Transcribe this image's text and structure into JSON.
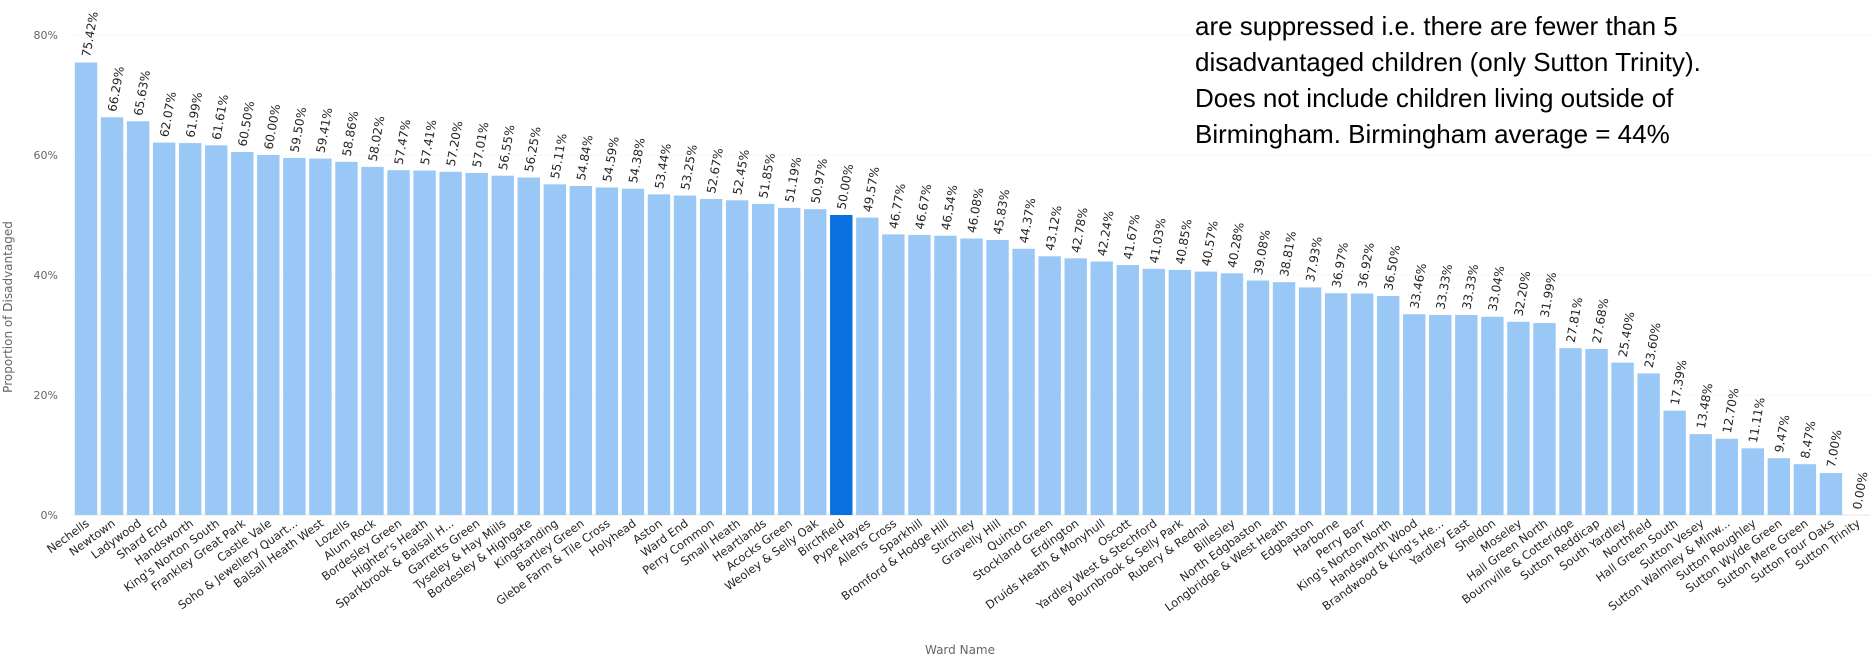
{
  "note_lines": [
    "are suppressed i.e. there are fewer than 5",
    "disadvantaged children (only Sutton Trinity).",
    "Does not include children living outside of",
    "Birmingham. Birmingham average = 44%"
  ],
  "colors": {
    "bar": "#99c8f6",
    "highlight": "#0a6fe0",
    "text": "#252423",
    "axis_text": "#666666",
    "grid": "#e4e4e4"
  },
  "chart_data": {
    "type": "bar",
    "xlabel": "Ward Name",
    "ylabel": "Proportion of Disadvantaged",
    "ylim": [
      0,
      80
    ],
    "yticks": [
      0,
      20,
      40,
      60,
      80
    ],
    "ytick_labels": [
      "0%",
      "20%",
      "40%",
      "60%",
      "80%"
    ],
    "grid": true,
    "highlight": "Birchfield",
    "categories": [
      "Nechells",
      "Newtown",
      "Ladywood",
      "Shard End",
      "Handsworth",
      "King's Norton South",
      "Frankley Great Park",
      "Castle Vale",
      "Soho & Jewellery Quart...",
      "Balsall Heath West",
      "Lozells",
      "Alum Rock",
      "Bordesley Green",
      "Highter's Heath",
      "Sparkbrook & Balsall H...",
      "Garretts Green",
      "Tyseley & Hay Mills",
      "Bordesley & Highgate",
      "Kingstanding",
      "Bartley Green",
      "Glebe Farm & Tile Cross",
      "Holyhead",
      "Aston",
      "Ward End",
      "Perry Common",
      "Small Heath",
      "Heartlands",
      "Acocks Green",
      "Weoley & Selly Oak",
      "Birchfield",
      "Pype Hayes",
      "Allens Cross",
      "Sparkhill",
      "Bromford & Hodge Hill",
      "Stirchley",
      "Gravelly Hill",
      "Quinton",
      "Stockland Green",
      "Erdington",
      "Druids Heath & Monyhull",
      "Oscott",
      "Yardley West & Stechford",
      "Bournbrook & Selly Park",
      "Rubery & Rednal",
      "Billesley",
      "North Edgbaston",
      "Longbridge & West Heath",
      "Edgbaston",
      "Harborne",
      "Perry Barr",
      "King's Norton North",
      "Handsworth Wood",
      "Brandwood & King's He...",
      "Yardley East",
      "Sheldon",
      "Moseley",
      "Hall Green North",
      "Bournville & Cotteridge",
      "Sutton Reddicap",
      "South Yardley",
      "Northfield",
      "Hall Green South",
      "Sutton Vesey",
      "Sutton Walmley & Minw...",
      "Sutton Roughley",
      "Sutton Wylde Green",
      "Sutton Mere Green",
      "Sutton Four Oaks",
      "Sutton Trinity"
    ],
    "values": [
      75.42,
      66.29,
      65.63,
      62.07,
      61.99,
      61.61,
      60.5,
      60.0,
      59.5,
      59.41,
      58.86,
      58.02,
      57.47,
      57.41,
      57.2,
      57.01,
      56.55,
      56.25,
      55.11,
      54.84,
      54.59,
      54.38,
      53.44,
      53.25,
      52.67,
      52.45,
      51.85,
      51.19,
      50.97,
      50.0,
      49.57,
      46.77,
      46.67,
      46.54,
      46.08,
      45.83,
      44.37,
      43.12,
      42.78,
      42.24,
      41.67,
      41.03,
      40.85,
      40.57,
      40.28,
      39.08,
      38.81,
      37.93,
      36.97,
      36.92,
      36.5,
      33.46,
      33.33,
      33.33,
      33.04,
      32.2,
      31.99,
      27.81,
      27.68,
      25.4,
      23.6,
      17.39,
      13.48,
      12.7,
      11.11,
      9.47,
      8.47,
      7.0,
      0.0
    ],
    "value_labels": [
      "75.42%",
      "66.29%",
      "65.63%",
      "62.07%",
      "61.99%",
      "61.61%",
      "60.50%",
      "60.00%",
      "59.50%",
      "59.41%",
      "58.86%",
      "58.02%",
      "57.47%",
      "57.41%",
      "57.20%",
      "57.01%",
      "56.55%",
      "56.25%",
      "55.11%",
      "54.84%",
      "54.59%",
      "54.38%",
      "53.44%",
      "53.25%",
      "52.67%",
      "52.45%",
      "51.85%",
      "51.19%",
      "50.97%",
      "50.00%",
      "49.57%",
      "46.77%",
      "46.67%",
      "46.54%",
      "46.08%",
      "45.83%",
      "44.37%",
      "43.12%",
      "42.78%",
      "42.24%",
      "41.67%",
      "41.03%",
      "40.85%",
      "40.57%",
      "40.28%",
      "39.08%",
      "38.81%",
      "37.93%",
      "36.97%",
      "36.92%",
      "36.50%",
      "33.46%",
      "33.33%",
      "33.33%",
      "33.04%",
      "32.20%",
      "31.99%",
      "27.81%",
      "27.68%",
      "25.40%",
      "23.60%",
      "17.39%",
      "13.48%",
      "12.70%",
      "11.11%",
      "9.47%",
      "8.47%",
      "7.00%",
      "0.00%"
    ]
  }
}
